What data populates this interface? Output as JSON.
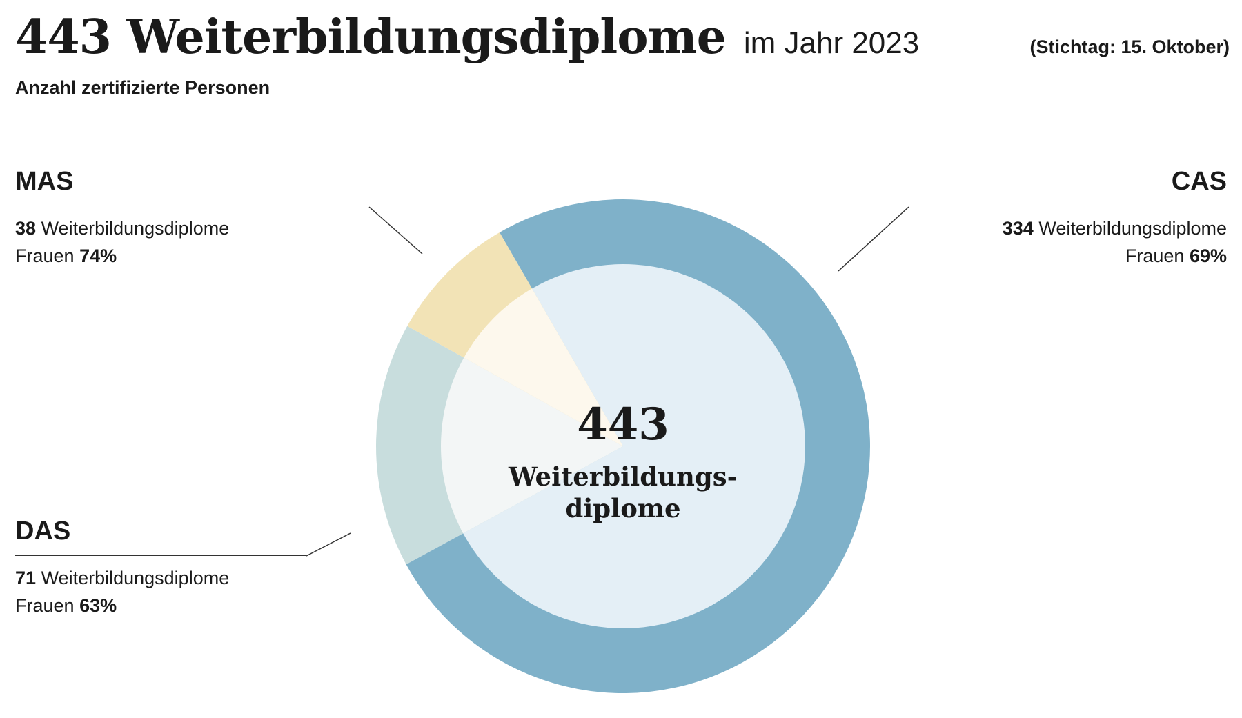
{
  "header": {
    "title": "443 Weiterbildungsdiplome",
    "title_suffix": "im Jahr 2023",
    "date_note": "(Stichtag: 15. Oktober)",
    "subtitle": "Anzahl zertifizierte Personen"
  },
  "center": {
    "total": "443",
    "label_line1": "Weiterbildungs-",
    "label_line2": "diplome"
  },
  "callouts": {
    "mas": {
      "title": "MAS",
      "count": "38",
      "count_label": "Weiterbildungsdiplome",
      "women_label": "Frauen",
      "women_value": "74%"
    },
    "cas": {
      "title": "CAS",
      "count": "334",
      "count_label": "Weiterbildungsdiplome",
      "women_label": "Frauen",
      "women_value": "69%"
    },
    "das": {
      "title": "DAS",
      "count": "71",
      "count_label": "Weiterbildungsdiplome",
      "women_label": "Frauen",
      "women_value": "63%"
    }
  },
  "chart_data": {
    "type": "pie",
    "title": "443 Weiterbildungsdiplome im Jahr 2023",
    "subtitle": "Anzahl zertifizierte Personen",
    "total": 443,
    "slices": [
      {
        "label": "CAS",
        "value": 334,
        "women_pct": 69,
        "color": "#7fb1c9",
        "inner_color": "#e4eff6"
      },
      {
        "label": "DAS",
        "value": 71,
        "women_pct": 63,
        "color": "#c8dddd",
        "inner_color": "#f3f6f6"
      },
      {
        "label": "MAS",
        "value": 38,
        "women_pct": 74,
        "color": "#f2e3b6",
        "inner_color": "#fdf8ed"
      }
    ]
  }
}
